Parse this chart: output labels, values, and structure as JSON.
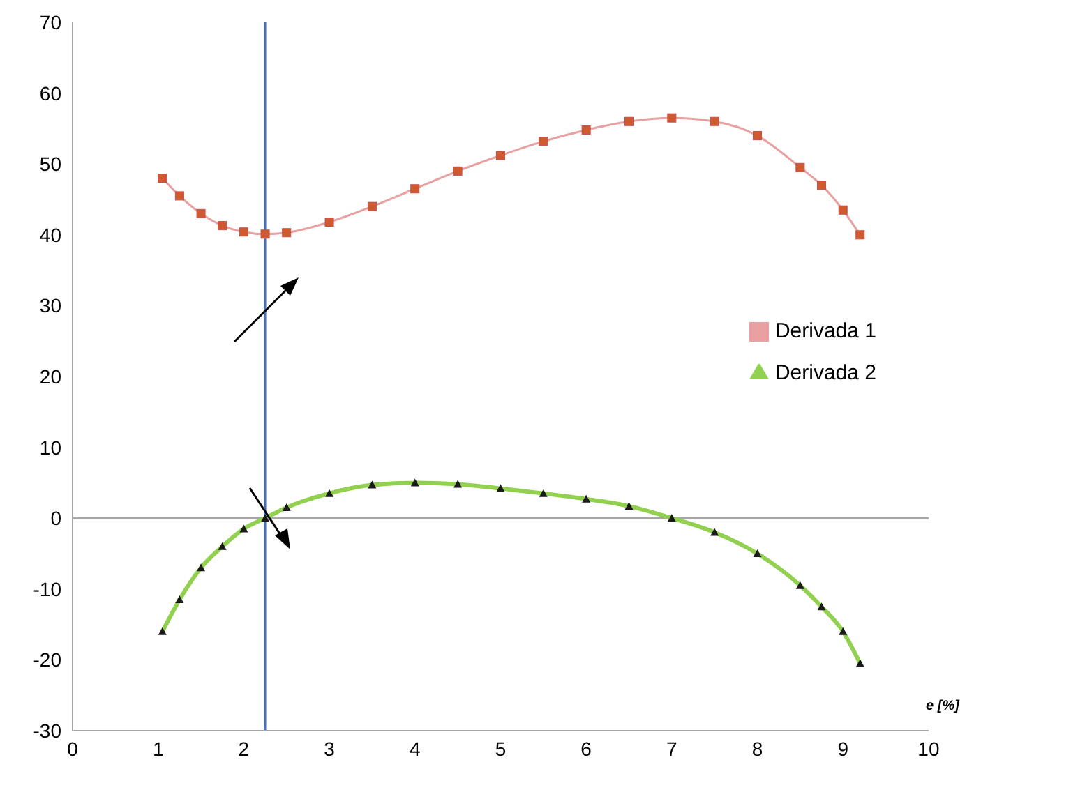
{
  "chart_data": {
    "type": "line",
    "xlabel": "e [%]",
    "xlim": [
      0,
      10
    ],
    "xticks": [
      0,
      1,
      2,
      3,
      4,
      5,
      6,
      7,
      8,
      9,
      10
    ],
    "ylim": [
      -30,
      70
    ],
    "yticks": [
      -30,
      -20,
      -10,
      0,
      10,
      20,
      30,
      40,
      50,
      60,
      70
    ],
    "grid": false,
    "legend": "right",
    "x": [
      1.05,
      1.25,
      1.5,
      1.75,
      2.0,
      2.25,
      2.5,
      3.0,
      3.5,
      4.0,
      4.5,
      5.0,
      5.5,
      6.0,
      6.5,
      7.0,
      7.5,
      8.0,
      8.5,
      8.75,
      9.0,
      9.2
    ],
    "series": [
      {
        "name": "Derivada 1",
        "color": "#d05a30",
        "marker": "square",
        "values": [
          48,
          45.5,
          43,
          41.3,
          40.4,
          40.1,
          40.3,
          41.8,
          44,
          46.5,
          49,
          51.2,
          53.2,
          54.8,
          56,
          56.5,
          56,
          54,
          49.5,
          47,
          43.5,
          40
        ]
      },
      {
        "name": "Derivada 2",
        "color": "#92d050",
        "marker": "triangle",
        "values": [
          -16,
          -11.5,
          -7,
          -4,
          -1.5,
          0,
          1.5,
          3.5,
          4.7,
          5,
          4.8,
          4.2,
          3.5,
          2.7,
          1.7,
          0,
          -2,
          -5,
          -9.5,
          -12.5,
          -16,
          -20.5
        ]
      }
    ],
    "ref_lines": [
      {
        "axis": "x",
        "value": 2.25,
        "color": "#4472c4"
      },
      {
        "axis": "y",
        "value": 0,
        "color": "#a6a6a6"
      }
    ]
  }
}
